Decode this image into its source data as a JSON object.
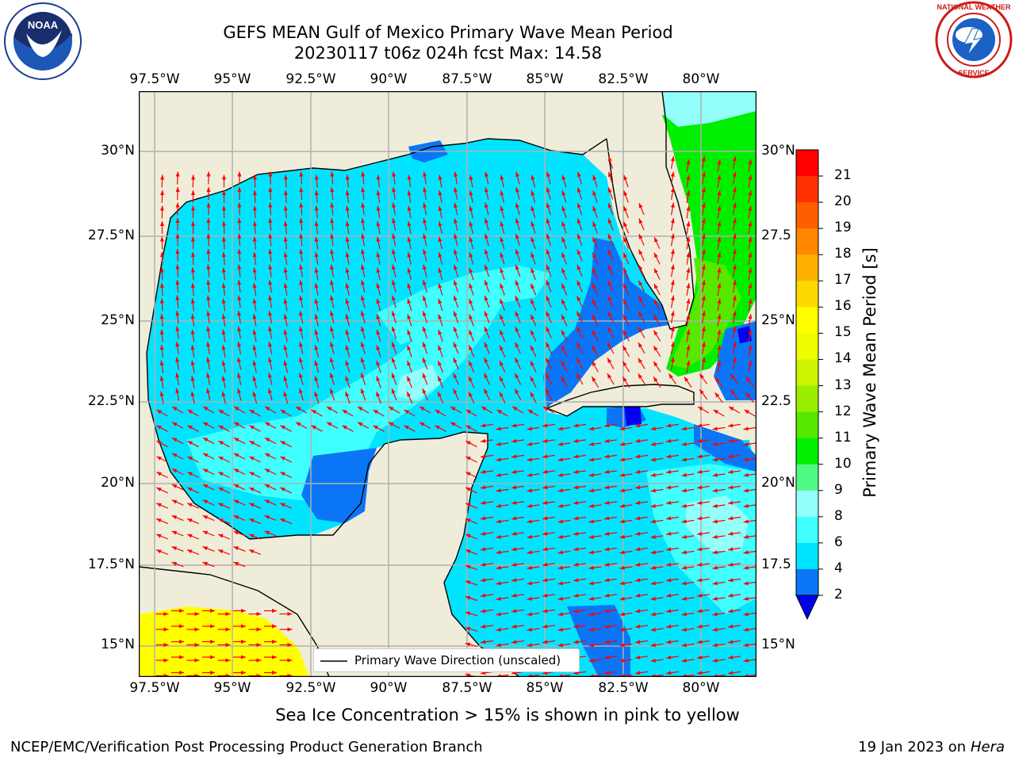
{
  "header": {
    "title_line1": "GEFS MEAN Gulf of Mexico Primary Wave Mean Period",
    "title_line2": "20230117 t06z 024h fcst   Max: 14.58"
  },
  "logos": {
    "left": {
      "name": "NOAA",
      "ring_text": "NATIONAL OCEANIC AND ATMOSPHERIC ADMINISTRATION · U.S. DEPARTMENT OF COMMERCE"
    },
    "right": {
      "ring_text": "NATIONAL WEATHER SERVICE"
    }
  },
  "map": {
    "lon_ticks": [
      "97.5°W",
      "95°W",
      "92.5°W",
      "90°W",
      "87.5°W",
      "85°W",
      "82.5°W",
      "80°W"
    ],
    "lat_ticks": [
      "30°N",
      "27.5°N",
      "25°N",
      "22.5°N",
      "20°N",
      "17.5°N",
      "15°N"
    ],
    "lat_ticks_right": [
      "30°N",
      "27.5",
      "25°N",
      "22.5",
      "20°N",
      "17.5",
      "15°N"
    ],
    "legend_label": "Primary Wave Direction (unscaled)",
    "arrow_color": "#ff0000",
    "land_color": "#efedd9"
  },
  "colorbar": {
    "label": "Primary Wave Mean Period [s]",
    "ticks": [
      "2",
      "4",
      "6",
      "8",
      "9",
      "10",
      "11",
      "12",
      "13",
      "14",
      "15",
      "16",
      "17",
      "18",
      "19",
      "20",
      "21"
    ],
    "colors": [
      "#0a76f5",
      "#00e4ff",
      "#3fffff",
      "#93fffb",
      "#50f884",
      "#00ee00",
      "#56e800",
      "#99ee00",
      "#ccf300",
      "#eefd00",
      "#ffff00",
      "#ffd800",
      "#ffb100",
      "#ff8800",
      "#ff5e00",
      "#ff3000",
      "#ff0000"
    ],
    "under_color": "#0000ee"
  },
  "footer": {
    "sea_ice_note": "Sea Ice Concentration > 15% is shown in pink to yellow",
    "credit_left": "NCEP/EMC/Verification Post Processing Product Generation Branch",
    "credit_right_date": "19 Jan 2023 on ",
    "credit_right_host": "Hera"
  }
}
